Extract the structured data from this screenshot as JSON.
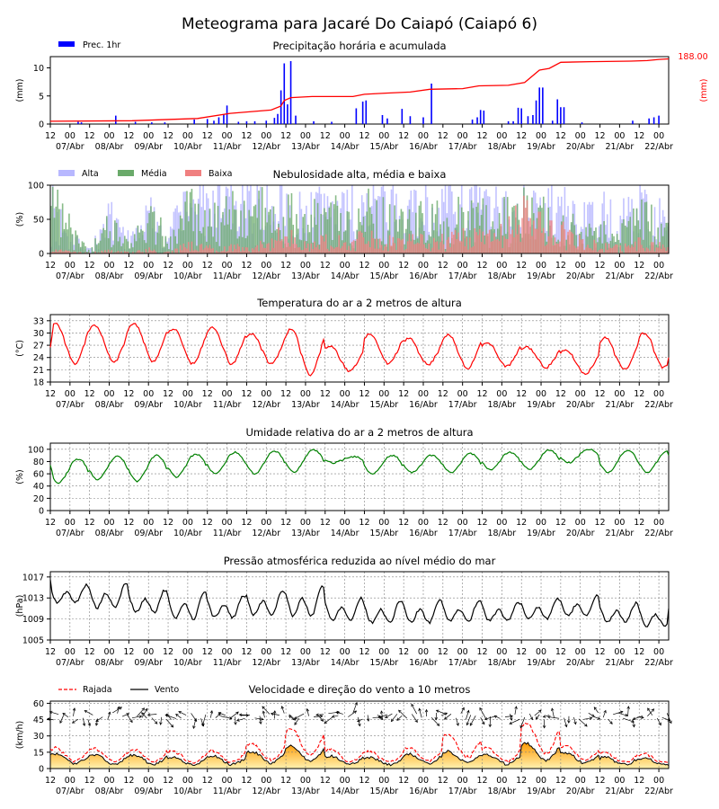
{
  "figure": {
    "title": "Meteograma para Jacaré Do Caiapó (Caiapó 6)"
  },
  "time_axis": {
    "hour_labels": [
      "12",
      "00",
      "12",
      "00",
      "12",
      "00",
      "12",
      "00",
      "12",
      "00",
      "12",
      "00",
      "12",
      "00",
      "12",
      "00",
      "12",
      "00",
      "12",
      "00",
      "12",
      "00",
      "12",
      "00",
      "12",
      "00",
      "12",
      "00",
      "12",
      "00",
      "12",
      "00",
      "12",
      "00"
    ],
    "day_labels": [
      "07/Abr",
      "08/Abr",
      "09/Abr",
      "10/Abr",
      "11/Abr",
      "12/Abr",
      "13/Abr",
      "14/Abr",
      "15/Abr",
      "16/Abr",
      "17/Abr",
      "18/Abr",
      "19/Abr",
      "20/Abr",
      "21/Abr",
      "22/Abr"
    ]
  },
  "colors": {
    "precip_bar": "#0000ff",
    "accum_line": "#ff0000",
    "cloud_high": "#b8b8ff",
    "cloud_mid": "#6aaa6a",
    "cloud_low": "#f08080",
    "temperature": "#ff0000",
    "humidity": "#008000",
    "pressure": "#000000",
    "gust": "#ff0000",
    "wind": "#000000",
    "wind_fill_top": "#ff9900",
    "wind_fill_bottom": "#fff2b0"
  },
  "chart_data": [
    {
      "id": "precip",
      "type": "bar",
      "title": "Precipitação horária e acumulada",
      "ylabel": "(mm)",
      "ylabel_right": "(mm)",
      "ylim": [
        0,
        12
      ],
      "yticks": [
        0,
        5,
        10
      ],
      "legend": [
        {
          "label": "Prec. 1hr"
        }
      ],
      "legend_position": "top-left",
      "x_hours": 378,
      "hourly_bars": [
        {
          "h": 17,
          "v": 0.4
        },
        {
          "h": 19,
          "v": 0.3
        },
        {
          "h": 40,
          "v": 1.5
        },
        {
          "h": 52,
          "v": 0.4
        },
        {
          "h": 62,
          "v": 0.3
        },
        {
          "h": 70,
          "v": 0.3
        },
        {
          "h": 88,
          "v": 0.8
        },
        {
          "h": 96,
          "v": 0.9
        },
        {
          "h": 100,
          "v": 0.6
        },
        {
          "h": 103,
          "v": 1.2
        },
        {
          "h": 106,
          "v": 1.7
        },
        {
          "h": 108,
          "v": 3.3
        },
        {
          "h": 115,
          "v": 0.4
        },
        {
          "h": 120,
          "v": 0.5
        },
        {
          "h": 125,
          "v": 0.5
        },
        {
          "h": 132,
          "v": 0.6
        },
        {
          "h": 137,
          "v": 1.1
        },
        {
          "h": 139,
          "v": 1.8
        },
        {
          "h": 141,
          "v": 6.0
        },
        {
          "h": 143,
          "v": 10.8
        },
        {
          "h": 145,
          "v": 3.5
        },
        {
          "h": 147,
          "v": 11.2
        },
        {
          "h": 150,
          "v": 1.5
        },
        {
          "h": 161,
          "v": 0.5
        },
        {
          "h": 172,
          "v": 0.4
        },
        {
          "h": 187,
          "v": 2.8
        },
        {
          "h": 191,
          "v": 4.0
        },
        {
          "h": 193,
          "v": 4.2
        },
        {
          "h": 203,
          "v": 1.6
        },
        {
          "h": 206,
          "v": 1.0
        },
        {
          "h": 215,
          "v": 2.7
        },
        {
          "h": 220,
          "v": 1.4
        },
        {
          "h": 228,
          "v": 1.2
        },
        {
          "h": 233,
          "v": 7.2
        },
        {
          "h": 258,
          "v": 0.8
        },
        {
          "h": 261,
          "v": 1.2
        },
        {
          "h": 263,
          "v": 2.5
        },
        {
          "h": 265,
          "v": 2.4
        },
        {
          "h": 280,
          "v": 0.5
        },
        {
          "h": 283,
          "v": 0.5
        },
        {
          "h": 286,
          "v": 2.9
        },
        {
          "h": 288,
          "v": 2.8
        },
        {
          "h": 292,
          "v": 1.4
        },
        {
          "h": 295,
          "v": 1.6
        },
        {
          "h": 297,
          "v": 4.2
        },
        {
          "h": 299,
          "v": 6.5
        },
        {
          "h": 301,
          "v": 6.5
        },
        {
          "h": 307,
          "v": 0.6
        },
        {
          "h": 310,
          "v": 4.4
        },
        {
          "h": 312,
          "v": 3.0
        },
        {
          "h": 314,
          "v": 3.0
        },
        {
          "h": 325,
          "v": 0.3
        },
        {
          "h": 356,
          "v": 0.6
        },
        {
          "h": 366,
          "v": 1.0
        },
        {
          "h": 369,
          "v": 1.2
        },
        {
          "h": 372,
          "v": 1.5
        }
      ],
      "accumulated": {
        "max": 188.0,
        "label": "188.00",
        "points": [
          [
            0,
            0.5
          ],
          [
            50,
            0.6
          ],
          [
            90,
            1.0
          ],
          [
            110,
            1.9
          ],
          [
            135,
            2.5
          ],
          [
            141,
            3.2
          ],
          [
            143,
            4.2
          ],
          [
            147,
            4.7
          ],
          [
            160,
            4.9
          ],
          [
            185,
            4.9
          ],
          [
            192,
            5.3
          ],
          [
            205,
            5.5
          ],
          [
            220,
            5.7
          ],
          [
            232,
            6.2
          ],
          [
            252,
            6.3
          ],
          [
            262,
            6.8
          ],
          [
            280,
            6.9
          ],
          [
            290,
            7.4
          ],
          [
            299,
            9.6
          ],
          [
            305,
            9.9
          ],
          [
            312,
            11.0
          ],
          [
            330,
            11.1
          ],
          [
            355,
            11.2
          ],
          [
            365,
            11.3
          ],
          [
            372,
            11.5
          ],
          [
            378,
            11.6
          ]
        ]
      }
    },
    {
      "id": "clouds",
      "type": "bar",
      "title": "Nebulosidade alta, média e baixa",
      "ylabel": "(%)",
      "ylim": [
        0,
        100
      ],
      "yticks": [
        0,
        50,
        100
      ],
      "legend_position": "top-left",
      "series": [
        {
          "name": "Alta"
        },
        {
          "name": "Média"
        },
        {
          "name": "Baixa"
        }
      ],
      "x_hours": 378,
      "profile": [
        {
          "h": 0,
          "high": 90,
          "mid": 90,
          "low": 8
        },
        {
          "h": 12,
          "high": 35,
          "mid": 45,
          "low": 3
        },
        {
          "h": 24,
          "high": 8,
          "mid": 5,
          "low": 2
        },
        {
          "h": 36,
          "high": 65,
          "mid": 70,
          "low": 5
        },
        {
          "h": 48,
          "high": 25,
          "mid": 10,
          "low": 3
        },
        {
          "h": 60,
          "high": 70,
          "mid": 70,
          "low": 8
        },
        {
          "h": 72,
          "high": 45,
          "mid": 25,
          "low": 3
        },
        {
          "h": 84,
          "high": 95,
          "mid": 80,
          "low": 15
        },
        {
          "h": 96,
          "high": 90,
          "mid": 55,
          "low": 10
        },
        {
          "h": 108,
          "high": 95,
          "mid": 80,
          "low": 12
        },
        {
          "h": 120,
          "high": 85,
          "mid": 60,
          "low": 12
        },
        {
          "h": 132,
          "high": 95,
          "mid": 85,
          "low": 25
        },
        {
          "h": 144,
          "high": 90,
          "mid": 85,
          "low": 35
        },
        {
          "h": 156,
          "high": 70,
          "mid": 55,
          "low": 20
        },
        {
          "h": 168,
          "high": 95,
          "mid": 80,
          "low": 30
        },
        {
          "h": 180,
          "high": 90,
          "mid": 60,
          "low": 25
        },
        {
          "h": 192,
          "high": 90,
          "mid": 85,
          "low": 30
        },
        {
          "h": 204,
          "high": 95,
          "mid": 75,
          "low": 25
        },
        {
          "h": 216,
          "high": 85,
          "mid": 60,
          "low": 25
        },
        {
          "h": 228,
          "high": 95,
          "mid": 80,
          "low": 25
        },
        {
          "h": 240,
          "high": 90,
          "mid": 60,
          "low": 25
        },
        {
          "h": 252,
          "high": 95,
          "mid": 75,
          "low": 30
        },
        {
          "h": 264,
          "high": 90,
          "mid": 65,
          "low": 30
        },
        {
          "h": 276,
          "high": 95,
          "mid": 80,
          "low": 40
        },
        {
          "h": 288,
          "high": 95,
          "mid": 85,
          "low": 70
        },
        {
          "h": 300,
          "high": 95,
          "mid": 80,
          "low": 55
        },
        {
          "h": 312,
          "high": 85,
          "mid": 70,
          "low": 40
        },
        {
          "h": 324,
          "high": 60,
          "mid": 35,
          "low": 20
        },
        {
          "h": 336,
          "high": 75,
          "mid": 50,
          "low": 15
        },
        {
          "h": 348,
          "high": 65,
          "mid": 45,
          "low": 10
        },
        {
          "h": 360,
          "high": 85,
          "mid": 75,
          "low": 20
        },
        {
          "h": 372,
          "high": 80,
          "mid": 55,
          "low": 15
        },
        {
          "h": 378,
          "high": 60,
          "mid": 40,
          "low": 10
        }
      ]
    },
    {
      "id": "temperature",
      "type": "line",
      "title": "Temperatura do ar a 2 metros de altura",
      "ylabel": "(°C)",
      "ylim": [
        18,
        34.5
      ],
      "yticks": [
        18,
        21,
        24,
        27,
        30,
        33
      ],
      "x_hours": 378,
      "grid": true,
      "daily": [
        {
          "max": 32.3,
          "min": 22.5
        },
        {
          "max": 31.8,
          "min": 22.8
        },
        {
          "max": 32.3,
          "min": 23.0
        },
        {
          "max": 31.0,
          "min": 22.5
        },
        {
          "max": 31.2,
          "min": 22.3
        },
        {
          "max": 29.8,
          "min": 22.4
        },
        {
          "max": 30.8,
          "min": 19.8
        },
        {
          "max": 26.8,
          "min": 20.6
        },
        {
          "max": 29.6,
          "min": 22.5
        },
        {
          "max": 28.6,
          "min": 22.2
        },
        {
          "max": 29.5,
          "min": 21.3
        },
        {
          "max": 27.5,
          "min": 21.8
        },
        {
          "max": 26.6,
          "min": 21.6
        },
        {
          "max": 25.7,
          "min": 20.0
        },
        {
          "max": 28.8,
          "min": 21.0
        },
        {
          "max": 30.0,
          "min": 21.5
        }
      ],
      "start_value": 26.5,
      "end_value": 24.0
    },
    {
      "id": "humidity",
      "type": "line",
      "title": "Umidade relativa do ar a 2 metros de altura",
      "ylabel": "(%)",
      "ylim": [
        0,
        110
      ],
      "yticks": [
        0,
        20,
        40,
        60,
        80,
        100
      ],
      "x_hours": 378,
      "grid": true,
      "daily": [
        {
          "max": 84,
          "min": 45
        },
        {
          "max": 88,
          "min": 50
        },
        {
          "max": 90,
          "min": 48
        },
        {
          "max": 92,
          "min": 55
        },
        {
          "max": 95,
          "min": 60
        },
        {
          "max": 97,
          "min": 60
        },
        {
          "max": 99,
          "min": 63
        },
        {
          "max": 88,
          "min": 78
        },
        {
          "max": 90,
          "min": 60
        },
        {
          "max": 90,
          "min": 62
        },
        {
          "max": 93,
          "min": 62
        },
        {
          "max": 95,
          "min": 67
        },
        {
          "max": 99,
          "min": 67
        },
        {
          "max": 100,
          "min": 78
        },
        {
          "max": 98,
          "min": 62
        },
        {
          "max": 97,
          "min": 62
        }
      ],
      "start_value": 74,
      "end_value": 90
    },
    {
      "id": "pressure",
      "type": "line",
      "title": "Pressão atmosférica reduzida ao nível médio do mar",
      "ylabel": "(hPa)",
      "ylim": [
        1005,
        1018
      ],
      "yticks": [
        1005,
        1009,
        1013,
        1017
      ],
      "x_hours": 378,
      "grid": true,
      "daily": [
        {
          "max": 1015.5,
          "min": 1011.5
        },
        {
          "max": 1015.8,
          "min": 1010.2
        },
        {
          "max": 1014.5,
          "min": 1009.5
        },
        {
          "max": 1014.2,
          "min": 1008.0
        },
        {
          "max": 1013.5,
          "min": 1008.5
        },
        {
          "max": 1014.5,
          "min": 1008.8
        },
        {
          "max": 1015.2,
          "min": 1008.5
        },
        {
          "max": 1013.0,
          "min": 1008.0
        },
        {
          "max": 1012.5,
          "min": 1007.5
        },
        {
          "max": 1012.6,
          "min": 1007.5
        },
        {
          "max": 1012.5,
          "min": 1007.8
        },
        {
          "max": 1012.2,
          "min": 1008.0
        },
        {
          "max": 1012.8,
          "min": 1008.3
        },
        {
          "max": 1013.4,
          "min": 1008.9
        },
        {
          "max": 1012.0,
          "min": 1007.8
        },
        {
          "max": 1011.5,
          "min": 1006.8
        }
      ],
      "start_value": 1016.5,
      "end_value": 1011.0
    },
    {
      "id": "wind",
      "type": "line",
      "title": "Velocidade e direção do vento a 10 metros",
      "ylabel": "(km/h)",
      "ylim": [
        0,
        62
      ],
      "yticks": [
        0,
        15,
        30,
        45,
        60
      ],
      "legend_position": "top-left",
      "series": [
        {
          "name": "Rajada"
        },
        {
          "name": "Vento"
        }
      ],
      "x_hours": 378,
      "grid": true,
      "daily": [
        {
          "wind": 13,
          "gust": 18
        },
        {
          "wind": 12,
          "gust": 17
        },
        {
          "wind": 12,
          "gust": 17
        },
        {
          "wind": 10,
          "gust": 15
        },
        {
          "wind": 11,
          "gust": 16
        },
        {
          "wind": 15,
          "gust": 22
        },
        {
          "wind": 20,
          "gust": 35
        },
        {
          "wind": 11,
          "gust": 17
        },
        {
          "wind": 10,
          "gust": 15
        },
        {
          "wind": 13,
          "gust": 18
        },
        {
          "wind": 15,
          "gust": 30
        },
        {
          "wind": 12,
          "gust": 18
        },
        {
          "wind": 22,
          "gust": 40
        },
        {
          "wind": 14,
          "gust": 20
        },
        {
          "wind": 10,
          "gust": 14
        },
        {
          "wind": 9,
          "gust": 13
        }
      ],
      "barb_level": 48
    }
  ]
}
